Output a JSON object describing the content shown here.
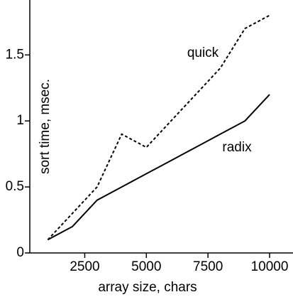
{
  "chart_data": {
    "type": "line",
    "x_label": "array size, chars",
    "y_label": "sort time, msec.",
    "x": [
      1000,
      2000,
      3000,
      4000,
      5000,
      6000,
      7000,
      8000,
      9000,
      10000
    ],
    "series": [
      {
        "name": "quick",
        "color": "#000000",
        "dash": true,
        "values": [
          0.1,
          0.3,
          0.5,
          0.9,
          0.8,
          1.0,
          1.2,
          1.4,
          1.7,
          1.8
        ]
      },
      {
        "name": "radix",
        "color": "#000000",
        "dash": false,
        "values": [
          0.1,
          0.2,
          0.4,
          0.5,
          0.6,
          0.7,
          0.8,
          0.9,
          1.0,
          1.2
        ]
      }
    ],
    "xlim": [
      270,
      10950
    ],
    "xticks": [
      2500,
      5000,
      7500,
      10000
    ],
    "ylim": [
      0,
      1.9
    ],
    "yticks": [
      0,
      0.5,
      1,
      1.5
    ],
    "grid": false
  }
}
